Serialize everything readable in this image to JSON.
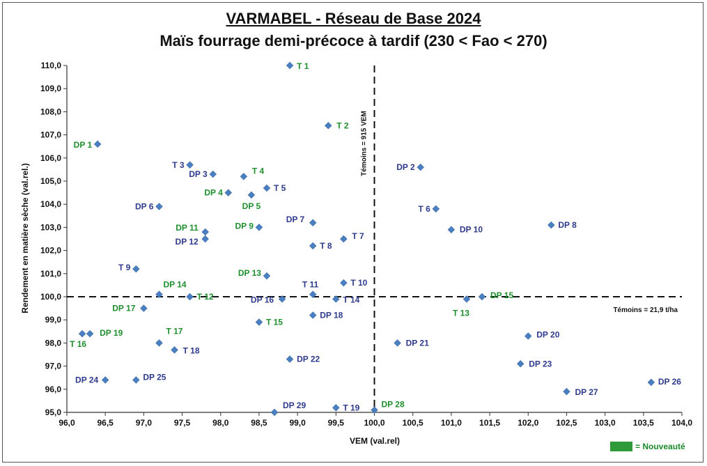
{
  "chart_data": {
    "type": "scatter",
    "title": "VARMABEL - Réseau de Base 2024",
    "subtitle": "Maïs fourrage demi-précoce à tardif (230 < Fao < 270)",
    "xlabel": "VEM (val.rel)",
    "ylabel": "Rendement en matière sèche (val.rel.)",
    "xlim": [
      96.0,
      104.0
    ],
    "ylim": [
      95.0,
      110.0
    ],
    "x_ticks": [
      "96,0",
      "96,5",
      "97,0",
      "97,5",
      "98,0",
      "98,5",
      "99,0",
      "99,5",
      "100,0",
      "100,5",
      "101,0",
      "101,5",
      "102,0",
      "102,5",
      "103,0",
      "103,5",
      "104,0"
    ],
    "y_ticks": [
      "95,0",
      "96,0",
      "97,0",
      "98,0",
      "99,0",
      "100,0",
      "101,0",
      "102,0",
      "103,0",
      "104,0",
      "105,0",
      "106,0",
      "107,0",
      "108,0",
      "109,0",
      "110,0"
    ],
    "reference_lines": {
      "vertical": {
        "x": 100.0,
        "label": "Témoins = 915 VEM"
      },
      "horizontal": {
        "y": 100.0,
        "label": "Témoins = 21,9 t/ha"
      }
    },
    "legend": {
      "label": "= Nouveauté",
      "color": "#2e9a3a"
    },
    "colors": {
      "marker": "#4a7fc1",
      "label_blue": "#2e3a8c",
      "label_green": "#1f8f2e"
    },
    "points": [
      {
        "label": "T 1",
        "x": 98.9,
        "y": 110.0,
        "new": true
      },
      {
        "label": "T 2",
        "x": 99.4,
        "y": 107.4,
        "new": true
      },
      {
        "label": "DP 1",
        "x": 96.4,
        "y": 106.6,
        "new": true
      },
      {
        "label": "T 3",
        "x": 97.6,
        "y": 105.7,
        "new": false
      },
      {
        "label": "DP 3",
        "x": 97.9,
        "y": 105.3,
        "new": false
      },
      {
        "label": "T 4",
        "x": 98.3,
        "y": 105.2,
        "new": true
      },
      {
        "label": "T 5",
        "x": 98.6,
        "y": 104.7,
        "new": false
      },
      {
        "label": "DP 4",
        "x": 98.1,
        "y": 104.5,
        "new": true
      },
      {
        "label": "DP 5",
        "x": 98.4,
        "y": 104.4,
        "new": true
      },
      {
        "label": "DP 6",
        "x": 97.2,
        "y": 103.9,
        "new": false
      },
      {
        "label": "DP 2",
        "x": 100.6,
        "y": 105.6,
        "new": false
      },
      {
        "label": "T 6",
        "x": 100.8,
        "y": 103.8,
        "new": false
      },
      {
        "label": "DP 8",
        "x": 102.3,
        "y": 103.1,
        "new": false
      },
      {
        "label": "DP 10",
        "x": 101.0,
        "y": 102.9,
        "new": false
      },
      {
        "label": "DP 7",
        "x": 99.2,
        "y": 103.2,
        "new": false
      },
      {
        "label": "DP 9",
        "x": 98.5,
        "y": 103.0,
        "new": true
      },
      {
        "label": "DP 11",
        "x": 97.8,
        "y": 102.8,
        "new": true
      },
      {
        "label": "DP 12",
        "x": 97.8,
        "y": 102.5,
        "new": false
      },
      {
        "label": "T 7",
        "x": 99.6,
        "y": 102.5,
        "new": false
      },
      {
        "label": "T 8",
        "x": 99.2,
        "y": 102.2,
        "new": false
      },
      {
        "label": "T 9",
        "x": 96.9,
        "y": 101.2,
        "new": false
      },
      {
        "label": "DP 13",
        "x": 98.6,
        "y": 100.9,
        "new": true
      },
      {
        "label": "T 10",
        "x": 99.6,
        "y": 100.6,
        "new": false
      },
      {
        "label": "T 11",
        "x": 99.2,
        "y": 100.1,
        "new": false
      },
      {
        "label": "DP 14",
        "x": 97.2,
        "y": 100.1,
        "new": true
      },
      {
        "label": "T 12",
        "x": 97.6,
        "y": 100.0,
        "new": true
      },
      {
        "label": "DP 16",
        "x": 98.8,
        "y": 99.9,
        "new": false
      },
      {
        "label": "T 14",
        "x": 99.5,
        "y": 99.9,
        "new": false
      },
      {
        "label": "DP 15",
        "x": 101.4,
        "y": 100.0,
        "new": true
      },
      {
        "label": "T 13",
        "x": 101.2,
        "y": 99.9,
        "new": true
      },
      {
        "label": "DP 17",
        "x": 97.0,
        "y": 99.5,
        "new": true
      },
      {
        "label": "DP 18",
        "x": 99.2,
        "y": 99.2,
        "new": false
      },
      {
        "label": "T 15",
        "x": 98.5,
        "y": 98.9,
        "new": true
      },
      {
        "label": "DP 19",
        "x": 96.3,
        "y": 98.4,
        "new": true
      },
      {
        "label": "T 16",
        "x": 96.2,
        "y": 98.4,
        "new": true
      },
      {
        "label": "T 17",
        "x": 97.2,
        "y": 98.0,
        "new": true
      },
      {
        "label": "T 18",
        "x": 97.4,
        "y": 97.7,
        "new": false
      },
      {
        "label": "DP 21",
        "x": 100.3,
        "y": 98.0,
        "new": false
      },
      {
        "label": "DP 20",
        "x": 102.0,
        "y": 98.3,
        "new": false
      },
      {
        "label": "DP 22",
        "x": 98.9,
        "y": 97.3,
        "new": false
      },
      {
        "label": "DP 23",
        "x": 101.9,
        "y": 97.1,
        "new": false
      },
      {
        "label": "DP 24",
        "x": 96.5,
        "y": 96.4,
        "new": false
      },
      {
        "label": "DP 25",
        "x": 96.9,
        "y": 96.4,
        "new": false
      },
      {
        "label": "DP 26",
        "x": 103.6,
        "y": 96.3,
        "new": false
      },
      {
        "label": "DP 27",
        "x": 102.5,
        "y": 95.9,
        "new": false
      },
      {
        "label": "DP 29",
        "x": 98.7,
        "y": 95.0,
        "new": false
      },
      {
        "label": "T 19",
        "x": 99.5,
        "y": 95.2,
        "new": false
      },
      {
        "label": "DP 28",
        "x": 100.0,
        "y": 95.1,
        "new": true
      }
    ]
  }
}
